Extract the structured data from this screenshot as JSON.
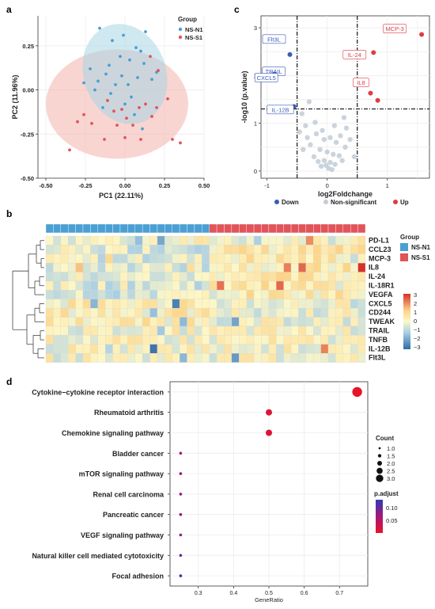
{
  "panels": {
    "a": {
      "label": "a"
    },
    "b": {
      "label": "b"
    },
    "c": {
      "label": "c"
    },
    "d": {
      "label": "d"
    }
  },
  "colors": {
    "group_n1": "#4a9fd3",
    "group_s1": "#e0545a",
    "ellipse_n1": "#a9d5e3",
    "ellipse_s1": "#f4b3ad",
    "down": "#3b5cb8",
    "up": "#e03b45",
    "nonsig": "#c2ccd6",
    "heat_high": "#d7312b",
    "heat_mid": "#fdf7c6",
    "heat_low": "#2f6ba8"
  },
  "chart_data": [
    {
      "panel": "a",
      "type": "scatter",
      "title": "",
      "xlabel": "PC1 (22.11%)",
      "ylabel": "PC2 (11.96%)",
      "xlim": [
        -0.55,
        0.5
      ],
      "ylim": [
        -0.5,
        0.42
      ],
      "xticks": [
        -0.5,
        -0.25,
        0.0,
        0.25,
        0.5
      ],
      "xtick_labels": [
        "-0.50",
        "-0.25",
        "0.00",
        "0.25",
        "0.50"
      ],
      "yticks": [
        -0.5,
        -0.25,
        0.0,
        0.25
      ],
      "ytick_labels": [
        "-0.50",
        "-0.25",
        "0.00",
        "0.25"
      ],
      "grid": true,
      "legend_title": "Group",
      "legend_position": "top-right",
      "series": [
        {
          "name": "NS-N1",
          "points": [
            [
              -0.16,
              0.35
            ],
            [
              -0.01,
              0.31
            ],
            [
              0.13,
              0.33
            ],
            [
              -0.08,
              0.28
            ],
            [
              0.07,
              0.24
            ],
            [
              0.1,
              0.22
            ],
            [
              -0.03,
              0.19
            ],
            [
              0.03,
              0.17
            ],
            [
              0.12,
              0.15
            ],
            [
              -0.1,
              0.14
            ],
            [
              -0.22,
              0.12
            ],
            [
              -0.12,
              0.09
            ],
            [
              -0.02,
              0.08
            ],
            [
              0.08,
              0.07
            ],
            [
              -0.17,
              0.05
            ],
            [
              -0.26,
              0.04
            ],
            [
              -0.06,
              0.03
            ],
            [
              0.02,
              0.03
            ],
            [
              0.17,
              0.06
            ],
            [
              0.2,
              0.1
            ],
            [
              -0.19,
              0.0
            ],
            [
              -0.09,
              -0.02
            ],
            [
              0.0,
              -0.08
            ],
            [
              0.06,
              -0.14
            ],
            [
              0.11,
              -0.22
            ],
            [
              -0.14,
              -0.1
            ],
            [
              0.04,
              -0.04
            ]
          ]
        },
        {
          "name": "NS-S1",
          "points": [
            [
              -0.35,
              -0.34
            ],
            [
              -0.3,
              -0.18
            ],
            [
              -0.21,
              -0.19
            ],
            [
              -0.13,
              -0.28
            ],
            [
              -0.05,
              -0.2
            ],
            [
              0.01,
              -0.16
            ],
            [
              0.05,
              -0.2
            ],
            [
              0.09,
              -0.1
            ],
            [
              0.13,
              -0.08
            ],
            [
              0.17,
              -0.15
            ],
            [
              0.2,
              -0.1
            ],
            [
              0.27,
              -0.05
            ],
            [
              0.3,
              -0.28
            ],
            [
              0.35,
              -0.3
            ],
            [
              0.16,
              0.19
            ],
            [
              0.21,
              0.11
            ],
            [
              -0.07,
              -0.12
            ],
            [
              0.0,
              -0.27
            ],
            [
              -0.11,
              -0.06
            ],
            [
              -0.26,
              -0.14
            ],
            [
              0.1,
              -0.28
            ],
            [
              -0.02,
              -0.11
            ]
          ]
        }
      ]
    },
    {
      "panel": "c",
      "type": "scatter",
      "title": "",
      "xlabel": "log2Foldchange",
      "ylabel": "-log10 (p.value)",
      "xlim": [
        -1.1,
        1.7
      ],
      "ylim": [
        -0.15,
        3.25
      ],
      "xticks": [
        -1,
        0,
        1
      ],
      "xtick_labels": [
        "-1",
        "0",
        "1"
      ],
      "yticks": [
        0,
        1,
        2,
        3
      ],
      "ytick_labels": [
        "0",
        "1",
        "2",
        "3"
      ],
      "vlines": [
        -0.5,
        0.5
      ],
      "hline": 1.3,
      "grid": true,
      "legend_position": "bottom",
      "legend": [
        {
          "key": "down",
          "label": "Down"
        },
        {
          "key": "nonsig",
          "label": "Non-significant"
        },
        {
          "key": "up",
          "label": "Up"
        }
      ],
      "labeled_points": [
        {
          "label": "MCP-3",
          "x": 1.57,
          "y": 2.86,
          "class": "up"
        },
        {
          "label": "IL-24",
          "x": 0.77,
          "y": 2.48,
          "class": "up"
        },
        {
          "label": "IL8",
          "x": 0.72,
          "y": 1.63,
          "class": "up"
        },
        {
          "label": "Flt3L",
          "x": -0.62,
          "y": 2.44,
          "class": "down"
        },
        {
          "label": "TRAIL",
          "x": -0.73,
          "y": 2.11,
          "class": "down"
        },
        {
          "label": "CXCL5",
          "x": -0.88,
          "y": 2.03,
          "class": "down"
        },
        {
          "label": "IL-12B",
          "x": -0.7,
          "y": 1.33,
          "class": "down"
        }
      ],
      "points": [
        {
          "x": 0.84,
          "y": 1.48,
          "class": "up"
        },
        {
          "x": -0.55,
          "y": 1.35,
          "class": "down"
        },
        {
          "x": -0.3,
          "y": 1.45,
          "class": "nonsig"
        },
        {
          "x": -0.42,
          "y": 1.2,
          "class": "nonsig"
        },
        {
          "x": -0.2,
          "y": 1.02,
          "class": "nonsig"
        },
        {
          "x": -0.36,
          "y": 0.95,
          "class": "nonsig"
        },
        {
          "x": -0.46,
          "y": 0.82,
          "class": "nonsig"
        },
        {
          "x": -0.18,
          "y": 0.78,
          "class": "nonsig"
        },
        {
          "x": -0.05,
          "y": 0.66,
          "class": "nonsig"
        },
        {
          "x": 0.05,
          "y": 0.7,
          "class": "nonsig"
        },
        {
          "x": 0.15,
          "y": 0.6,
          "class": "nonsig"
        },
        {
          "x": 0.22,
          "y": 0.74,
          "class": "nonsig"
        },
        {
          "x": 0.3,
          "y": 0.5,
          "class": "nonsig"
        },
        {
          "x": 0.38,
          "y": 0.66,
          "class": "nonsig"
        },
        {
          "x": -0.28,
          "y": 0.55,
          "class": "nonsig"
        },
        {
          "x": -0.12,
          "y": 0.45,
          "class": "nonsig"
        },
        {
          "x": 0.0,
          "y": 0.4,
          "class": "nonsig"
        },
        {
          "x": 0.1,
          "y": 0.35,
          "class": "nonsig"
        },
        {
          "x": 0.2,
          "y": 0.32,
          "class": "nonsig"
        },
        {
          "x": -0.22,
          "y": 0.3,
          "class": "nonsig"
        },
        {
          "x": -0.05,
          "y": 0.22,
          "class": "nonsig"
        },
        {
          "x": 0.05,
          "y": 0.18,
          "class": "nonsig"
        },
        {
          "x": 0.13,
          "y": 0.14,
          "class": "nonsig"
        },
        {
          "x": -0.1,
          "y": 0.1,
          "class": "nonsig"
        },
        {
          "x": 0.02,
          "y": 0.06,
          "class": "nonsig"
        },
        {
          "x": 0.08,
          "y": 0.03,
          "class": "nonsig"
        },
        {
          "x": -0.02,
          "y": 0.12,
          "class": "nonsig"
        },
        {
          "x": 0.25,
          "y": 0.22,
          "class": "nonsig"
        },
        {
          "x": -0.15,
          "y": 0.2,
          "class": "nonsig"
        },
        {
          "x": 0.32,
          "y": 0.9,
          "class": "nonsig"
        },
        {
          "x": -0.33,
          "y": 0.7,
          "class": "nonsig"
        },
        {
          "x": 0.12,
          "y": 0.95,
          "class": "nonsig"
        },
        {
          "x": 0.45,
          "y": 0.3,
          "class": "nonsig"
        },
        {
          "x": -0.4,
          "y": 0.45,
          "class": "nonsig"
        },
        {
          "x": 0.28,
          "y": 1.12,
          "class": "nonsig"
        },
        {
          "x": -0.08,
          "y": 0.85,
          "class": "nonsig"
        }
      ]
    },
    {
      "panel": "b",
      "type": "heatmap",
      "title": "",
      "column_groups": [
        {
          "name": "NS-N1",
          "count": 22
        },
        {
          "name": "NS-S1",
          "count": 21
        }
      ],
      "legend_title": "Group",
      "rows": [
        "PD-L1",
        "CCL23",
        "MCP-3",
        "IL8",
        "IL-24",
        "IL-18R1",
        "VEGFA",
        "CXCL5",
        "CD244",
        "TWEAK",
        "TRAIL",
        "TNFB",
        "IL-12B",
        "Flt3L"
      ],
      "color_scale": {
        "min": -3,
        "max": 3,
        "ticks": [
          "3",
          "2",
          "1",
          "0",
          "−1",
          "−2",
          "−3"
        ]
      }
    },
    {
      "panel": "d",
      "type": "scatter",
      "title": "",
      "xlabel": "GeneRatio",
      "xlim": [
        0.22,
        0.78
      ],
      "xticks": [
        0.3,
        0.4,
        0.5,
        0.6,
        0.7
      ],
      "xtick_labels": [
        "0.3",
        "0.4",
        "0.5",
        "0.6",
        "0.7"
      ],
      "grid": true,
      "size_legend": {
        "title": "Count",
        "values": [
          "1.0",
          "1.5",
          "2.0",
          "2.5",
          "3.0"
        ]
      },
      "color_legend": {
        "title": "p.adjust",
        "ticks": [
          "0.10",
          "0.05"
        ]
      },
      "pathways": [
        {
          "name": "Cytokine−cytokine receptor interaction",
          "gene_ratio": 0.75,
          "count": 3,
          "p_adjust": 0.02
        },
        {
          "name": "Rheumatoid arthritis",
          "gene_ratio": 0.5,
          "count": 2,
          "p_adjust": 0.03
        },
        {
          "name": "Chemokine signaling pathway",
          "gene_ratio": 0.5,
          "count": 2,
          "p_adjust": 0.03
        },
        {
          "name": "Bladder cancer",
          "gene_ratio": 0.25,
          "count": 1,
          "p_adjust": 0.08
        },
        {
          "name": "mTOR signaling pathway",
          "gene_ratio": 0.25,
          "count": 1,
          "p_adjust": 0.085
        },
        {
          "name": "Renal cell carcinoma",
          "gene_ratio": 0.25,
          "count": 1,
          "p_adjust": 0.09
        },
        {
          "name": "Pancreatic cancer",
          "gene_ratio": 0.25,
          "count": 1,
          "p_adjust": 0.09
        },
        {
          "name": "VEGF signaling pathway",
          "gene_ratio": 0.25,
          "count": 1,
          "p_adjust": 0.095
        },
        {
          "name": "Natural killer cell mediated cytotoxicity",
          "gene_ratio": 0.25,
          "count": 1,
          "p_adjust": 0.11
        },
        {
          "name": "Focal adhesion",
          "gene_ratio": 0.25,
          "count": 1,
          "p_adjust": 0.14
        }
      ]
    }
  ]
}
